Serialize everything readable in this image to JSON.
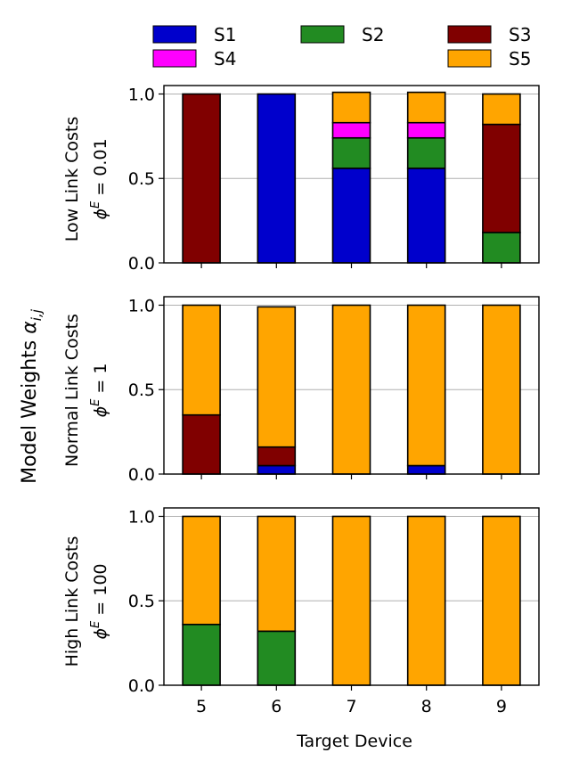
{
  "chart_data": {
    "type": "bar",
    "stacked": true,
    "ylabel": "Model Weights α_{i,j}",
    "xlabel": "Target Device",
    "categories": [
      "5",
      "6",
      "7",
      "8",
      "9"
    ],
    "ylim": [
      0,
      1.05
    ],
    "yticks": [
      "0.0",
      "0.5",
      "1.0"
    ],
    "grid": true,
    "legend_position": "top",
    "series_order": [
      "S1",
      "S2",
      "S3",
      "S4",
      "S5"
    ],
    "legend": [
      {
        "name": "S1",
        "color": "#0000cc"
      },
      {
        "name": "S2",
        "color": "#228b22"
      },
      {
        "name": "S3",
        "color": "#800000"
      },
      {
        "name": "S4",
        "color": "#ff00ff"
      },
      {
        "name": "S5",
        "color": "#ffa500"
      }
    ],
    "panels": [
      {
        "title_line1": "Low Link Costs",
        "title_line2": "ϕ^E = 0.01",
        "phi_value": "0.01",
        "series": {
          "S1": [
            0.0,
            1.0,
            0.56,
            0.56,
            0.0
          ],
          "S2": [
            0.0,
            0.0,
            0.18,
            0.18,
            0.18
          ],
          "S3": [
            1.0,
            0.0,
            0.0,
            0.0,
            0.64
          ],
          "S4": [
            0.0,
            0.0,
            0.09,
            0.09,
            0.0
          ],
          "S5": [
            0.0,
            0.0,
            0.18,
            0.18,
            0.18
          ]
        }
      },
      {
        "title_line1": "Normal Link Costs",
        "title_line2": "ϕ^E = 1",
        "phi_value": "1",
        "series": {
          "S1": [
            0.0,
            0.05,
            0.0,
            0.05,
            0.0
          ],
          "S2": [
            0.0,
            0.0,
            0.0,
            0.0,
            0.0
          ],
          "S3": [
            0.35,
            0.11,
            0.0,
            0.0,
            0.0
          ],
          "S4": [
            0.0,
            0.0,
            0.0,
            0.0,
            0.0
          ],
          "S5": [
            0.65,
            0.83,
            1.0,
            0.95,
            1.0
          ]
        }
      },
      {
        "title_line1": "High Link Costs",
        "title_line2": "ϕ^E = 100",
        "phi_value": "100",
        "series": {
          "S1": [
            0.0,
            0.0,
            0.0,
            0.0,
            0.0
          ],
          "S2": [
            0.36,
            0.32,
            0.0,
            0.0,
            0.0
          ],
          "S3": [
            0.0,
            0.0,
            0.0,
            0.0,
            0.0
          ],
          "S4": [
            0.0,
            0.0,
            0.0,
            0.0,
            0.0
          ],
          "S5": [
            0.64,
            0.68,
            1.0,
            1.0,
            1.0
          ]
        }
      }
    ]
  }
}
